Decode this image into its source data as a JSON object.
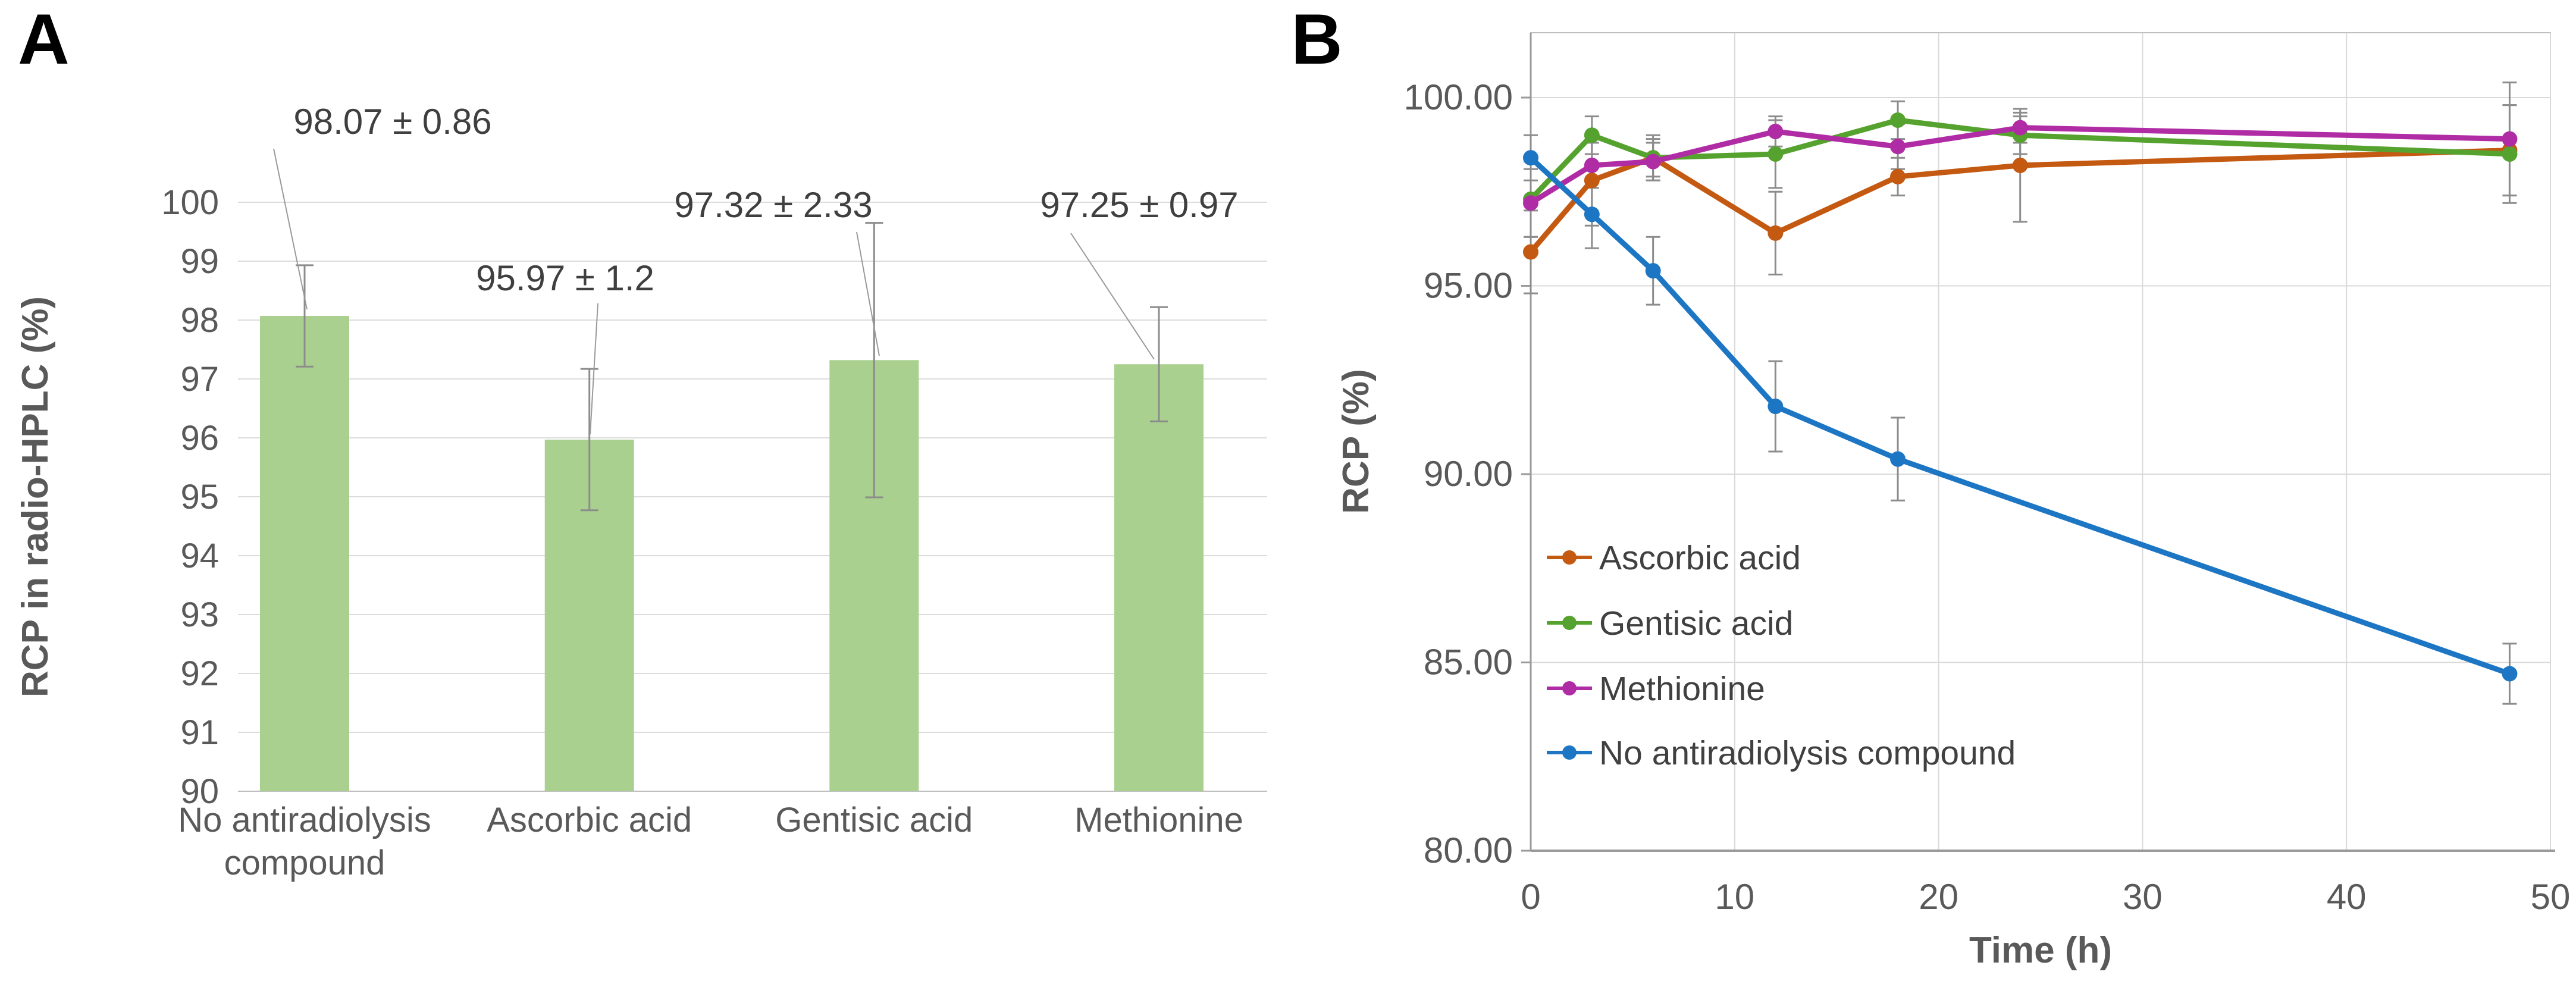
{
  "chart_data": [
    {
      "type": "bar",
      "panel_letter": "A",
      "ylabel": "RCP in radio-HPLC (%)",
      "ylim": [
        90,
        100
      ],
      "ytick_step": 1,
      "grid": true,
      "bar_color": "#a9d08e",
      "error_bar_color": "#8c8c8c",
      "categories": [
        "No antiradiolysis compound",
        "Ascorbic acid",
        "Gentisic acid",
        "Methionine"
      ],
      "category_lines": [
        [
          "No antiradiolysis",
          "compound"
        ],
        [
          "Ascorbic acid"
        ],
        [
          "Gentisic acid"
        ],
        [
          "Methionine"
        ]
      ],
      "values": [
        98.07,
        95.97,
        97.32,
        97.25
      ],
      "errors": [
        0.86,
        1.2,
        2.33,
        0.97
      ],
      "annotations": [
        "98.07 ± 0.86",
        "95.97 ± 1.2",
        "97.32 ± 2.33",
        "97.25 ±  0.97"
      ]
    },
    {
      "type": "line",
      "panel_letter": "B",
      "xlabel": "Time (h)",
      "ylabel": "RCP (%)",
      "xlim": [
        0,
        50
      ],
      "ylim": [
        80,
        100
      ],
      "xticks": [
        0,
        10,
        20,
        30,
        40,
        50
      ],
      "xticklabels": [
        "0",
        "10",
        "20",
        "30",
        "40",
        "50"
      ],
      "yticks": [
        80,
        85,
        90,
        95,
        100
      ],
      "yticklabels": [
        "80.00",
        "85.00",
        "90.00",
        "95.00",
        "100.00"
      ],
      "grid": true,
      "legend_position": "inside-left-bottom",
      "error_bar_color": "#8c8c8c",
      "series": [
        {
          "name": "Ascorbic acid",
          "color": "#c45911",
          "x": [
            0,
            3,
            6,
            12,
            18,
            24,
            48
          ],
          "y": [
            95.9,
            97.8,
            98.4,
            96.4,
            97.9,
            98.2,
            98.6
          ],
          "err": [
            1.1,
            1.2,
            0.5,
            1.1,
            0.5,
            1.5,
            1.2
          ]
        },
        {
          "name": "Gentisic acid",
          "color": "#55a32e",
          "x": [
            0,
            3,
            6,
            12,
            18,
            24,
            48
          ],
          "y": [
            97.3,
            99.0,
            98.4,
            98.5,
            99.4,
            99.0,
            98.5
          ],
          "err": [
            1.0,
            0.5,
            0.6,
            0.9,
            0.5,
            0.5,
            1.3
          ]
        },
        {
          "name": "Methionine",
          "color": "#b02ca5",
          "x": [
            0,
            3,
            6,
            12,
            18,
            24,
            48
          ],
          "y": [
            97.2,
            98.2,
            98.3,
            99.1,
            98.7,
            99.2,
            98.9
          ],
          "err": [
            0.9,
            0.6,
            0.5,
            0.4,
            0.6,
            0.4,
            1.5
          ]
        },
        {
          "name": "No antiradiolysis compound",
          "color": "#1d76c3",
          "x": [
            0,
            3,
            6,
            12,
            18,
            48
          ],
          "y": [
            98.4,
            96.9,
            95.4,
            91.8,
            90.4,
            84.7
          ],
          "err": [
            0.6,
            0.9,
            0.9,
            1.2,
            1.1,
            0.8
          ]
        }
      ]
    }
  ]
}
